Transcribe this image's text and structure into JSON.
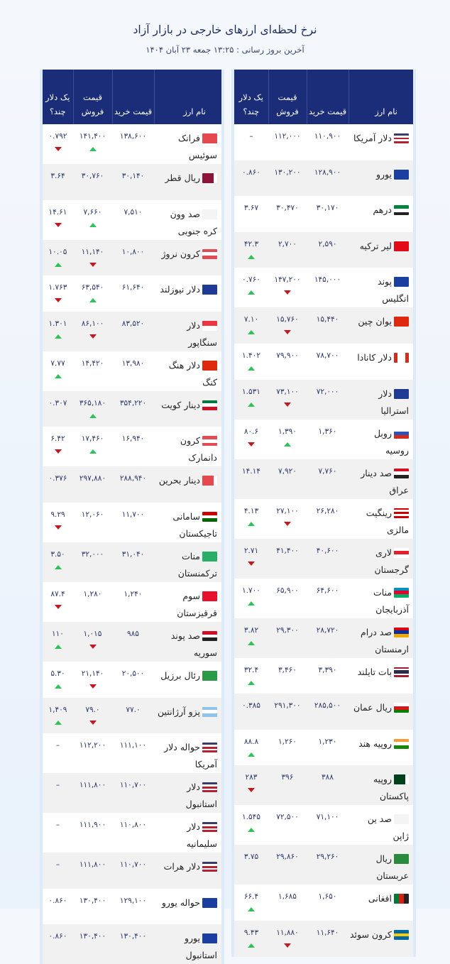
{
  "header": {
    "title": "نرخ لحظه‌ای ارزهای خارجی در بازار آزاد",
    "subtitle": "آخرین بروز رسانی : ۱۳:۲۵ جمعه ۲۳ آبان ۱۴۰۴"
  },
  "columns": {
    "name": "نام ارز",
    "buy": "قیمت خرید",
    "sell": "قیمت فروش",
    "per_usd": "یک دلار چند؟"
  },
  "colors": {
    "header_bg": "#1b2d78",
    "up": "#2fc25a",
    "down": "#c41820"
  },
  "right_table": [
    {
      "name": "دلار آمریکا",
      "flag": {
        "icon": "us-flag-icon",
        "dir": "h",
        "colors": [
          "#3c3b6e",
          "#fff",
          "#b22234",
          "#fff",
          "#b22234"
        ]
      },
      "buy": "۱۱۰,۹۰۰",
      "sell": "۱۱۲,۰۰۰",
      "per_usd": "–",
      "sell_trend": null,
      "per_usd_trend": null
    },
    {
      "name": "یورو",
      "flag": {
        "icon": "eu-flag-icon",
        "dir": "h",
        "colors": [
          "#1b3fa0"
        ]
      },
      "buy": "۱۲۸,۹۰۰",
      "sell": "۱۳۰,۲۰۰",
      "per_usd": "۰.۸۶۰",
      "sell_trend": null,
      "per_usd_trend": null
    },
    {
      "name": "درهم",
      "flag": {
        "icon": "uae-flag-icon",
        "dir": "h",
        "colors": [
          "#00843d",
          "#fff",
          "#222"
        ]
      },
      "buy": "۳۰,۱۷۰",
      "sell": "۳۰,۴۷۰",
      "per_usd": "۳.۶۷",
      "sell_trend": null,
      "per_usd_trend": null
    },
    {
      "name": "لیر ترکیه",
      "flag": {
        "icon": "turkey-flag-icon",
        "dir": "h",
        "colors": [
          "#e30a17"
        ]
      },
      "buy": "۲,۵۹۰",
      "sell": "۲,۷۰۰",
      "per_usd": "۴۲.۳",
      "sell_trend": null,
      "per_usd_trend": "up"
    },
    {
      "name": "پوند انگلیس",
      "flag": {
        "icon": "eu-flag-icon",
        "dir": "h",
        "colors": [
          "#1b3fa0"
        ]
      },
      "buy": "۱۴۵,۰۰۰",
      "sell": "۱۴۷,۲۰۰",
      "per_usd": "۰.۷۶۰",
      "sell_trend": "down",
      "per_usd_trend": "up"
    },
    {
      "name": "یوان چین",
      "flag": {
        "icon": "china-flag-icon",
        "dir": "h",
        "colors": [
          "#de2910"
        ]
      },
      "buy": "۱۵,۴۴۰",
      "sell": "۱۵,۷۶۰",
      "per_usd": "۷.۱۰",
      "sell_trend": "down",
      "per_usd_trend": "up"
    },
    {
      "name": "دلار کانادا",
      "flag": {
        "icon": "canada-flag-icon",
        "dir": "v",
        "colors": [
          "#d52b1e",
          "#fff",
          "#fff",
          "#d52b1e"
        ]
      },
      "buy": "۷۸,۷۰۰",
      "sell": "۷۹,۹۰۰",
      "per_usd": "۱.۴۰۲",
      "sell_trend": null,
      "per_usd_trend": "up"
    },
    {
      "name": "دلار استرالیا",
      "flag": {
        "icon": "australia-flag-icon",
        "dir": "h",
        "colors": [
          "#1f3a93"
        ]
      },
      "buy": "۷۲,۰۰۰",
      "sell": "۷۳,۱۰۰",
      "per_usd": "۱.۵۳۱",
      "sell_trend": "down",
      "per_usd_trend": "up"
    },
    {
      "name": "روبل روسیه",
      "flag": {
        "icon": "russia-flag-icon",
        "dir": "h",
        "colors": [
          "#fff",
          "#2c52b8",
          "#d52b1e"
        ]
      },
      "buy": "۱,۳۶۰",
      "sell": "۱,۳۹۰",
      "per_usd": "۸۰.۶",
      "sell_trend": "up",
      "per_usd_trend": "down"
    },
    {
      "name": "صد دینار عراق",
      "flag": {
        "icon": "iraq-flag-icon",
        "dir": "h",
        "colors": [
          "#ce1126",
          "#fff",
          "#222"
        ]
      },
      "buy": "۷,۷۶۰",
      "sell": "۷,۹۲۰",
      "per_usd": "۱۴.۱۴",
      "sell_trend": null,
      "per_usd_trend": null
    },
    {
      "name": "رینگیت مالزی",
      "flag": {
        "icon": "malaysia-flag-icon",
        "dir": "h",
        "colors": [
          "#cc0001",
          "#fff",
          "#cc0001",
          "#fff",
          "#cc0001"
        ]
      },
      "buy": "۲۶,۲۸۰",
      "sell": "۲۷,۱۰۰",
      "per_usd": "۴.۱۳",
      "sell_trend": "down",
      "per_usd_trend": "up"
    },
    {
      "name": "لاری گرجستان",
      "flag": {
        "icon": "georgia-flag-icon",
        "dir": "h",
        "colors": [
          "#fff",
          "#e41e2a",
          "#fff"
        ]
      },
      "buy": "۴۰,۶۰۰",
      "sell": "۴۱,۴۰۰",
      "per_usd": "۲.۷۱",
      "sell_trend": null,
      "per_usd_trend": "down"
    },
    {
      "name": "منات آذربایجان",
      "flag": {
        "icon": "azerbaijan-flag-icon",
        "dir": "h",
        "colors": [
          "#0092bc",
          "#e4002b",
          "#00af66"
        ]
      },
      "buy": "۶۴,۶۰۰",
      "sell": "۶۵,۹۰۰",
      "per_usd": "۱.۷۰۰",
      "sell_trend": null,
      "per_usd_trend": "up"
    },
    {
      "name": "صد درام ارمنستان",
      "flag": {
        "icon": "armenia-flag-icon",
        "dir": "h",
        "colors": [
          "#d90012",
          "#0033a0",
          "#f2a800"
        ]
      },
      "buy": "۲۸,۷۲۰",
      "sell": "۲۹,۳۰۰",
      "per_usd": "۳.۸۲",
      "sell_trend": null,
      "per_usd_trend": "up"
    },
    {
      "name": "بات تایلند",
      "flag": {
        "icon": "thailand-flag-icon",
        "dir": "h",
        "colors": [
          "#a51931",
          "#fff",
          "#2d2a4a",
          "#2d2a4a",
          "#fff",
          "#a51931"
        ]
      },
      "buy": "۳,۳۹۰",
      "sell": "۳,۴۶۰",
      "per_usd": "۳۲.۴",
      "sell_trend": null,
      "per_usd_trend": "up"
    },
    {
      "name": "ریال عمان",
      "flag": {
        "icon": "oman-flag-icon",
        "dir": "h",
        "colors": [
          "#fff",
          "#db161b",
          "#008000"
        ]
      },
      "buy": "۲۸۵,۵۰۰",
      "sell": "۲۹۱,۳۰۰",
      "per_usd": "۰.۳۸۵",
      "sell_trend": null,
      "per_usd_trend": null
    },
    {
      "name": "روپیه هند",
      "flag": {
        "icon": "india-flag-icon",
        "dir": "h",
        "colors": [
          "#ff9933",
          "#fff",
          "#138808"
        ]
      },
      "buy": "۱,۲۳۰",
      "sell": "۱,۲۶۰",
      "per_usd": "۸۸.۸",
      "sell_trend": null,
      "per_usd_trend": "up"
    },
    {
      "name": "روپیه پاکستان",
      "flag": {
        "icon": "pakistan-flag-icon",
        "dir": "v",
        "colors": [
          "#fff",
          "#01411c",
          "#01411c",
          "#01411c"
        ]
      },
      "buy": "۳۸۸",
      "sell": "۳۹۶",
      "per_usd": "۲۸۳",
      "sell_trend": null,
      "per_usd_trend": "down"
    },
    {
      "name": "صد ین ژاپن",
      "flag": {
        "icon": "japan-flag-icon",
        "dir": "h",
        "colors": [
          "#f4f4f4"
        ]
      },
      "buy": "۷۱,۱۰۰",
      "sell": "۷۲,۵۰۰",
      "per_usd": "۱.۵۴۵",
      "sell_trend": null,
      "per_usd_trend": "up"
    },
    {
      "name": "ریال عربستان",
      "flag": {
        "icon": "saudi-flag-icon",
        "dir": "h",
        "colors": [
          "#2a8a3e"
        ]
      },
      "buy": "۲۹,۲۶۰",
      "sell": "۲۹,۸۶۰",
      "per_usd": "۳.۷۵",
      "sell_trend": null,
      "per_usd_trend": null
    },
    {
      "name": "افغانی",
      "flag": {
        "icon": "afghanistan-flag-icon",
        "dir": "v",
        "colors": [
          "#222",
          "#d32011",
          "#007a36"
        ]
      },
      "buy": "۱,۶۵۰",
      "sell": "۱,۶۸۵",
      "per_usd": "۶۶.۴",
      "sell_trend": null,
      "per_usd_trend": "up"
    },
    {
      "name": "کرون سوئد",
      "flag": {
        "icon": "sweden-flag-icon",
        "dir": "h",
        "colors": [
          "#006aa7",
          "#fecc00",
          "#006aa7"
        ]
      },
      "buy": "۱۱,۶۴۰",
      "sell": "۱۱,۸۸۰",
      "per_usd": "۹.۴۳",
      "sell_trend": "down",
      "per_usd_trend": "up"
    }
  ],
  "left_table": [
    {
      "name": "فرانک سوئیس",
      "flag": {
        "icon": "swiss-flag-icon",
        "dir": "h",
        "colors": [
          "#e5484d"
        ]
      },
      "buy": "۱۳۸,۶۰۰",
      "sell": "۱۴۱,۴۰۰",
      "per_usd": "۰.۷۹۲",
      "sell_trend": "up",
      "per_usd_trend": "down"
    },
    {
      "name": "ریال قطر",
      "flag": {
        "icon": "qatar-flag-icon",
        "dir": "v",
        "colors": [
          "#fff",
          "#8a1538",
          "#8a1538",
          "#8a1538"
        ]
      },
      "buy": "۳۰,۱۴۰",
      "sell": "۳۰,۷۶۰",
      "per_usd": "۳.۶۴",
      "sell_trend": null,
      "per_usd_trend": null
    },
    {
      "name": "صد وون کره جنوبی",
      "flag": {
        "icon": "south-korea-flag-icon",
        "dir": "h",
        "colors": [
          "#f4f4f4"
        ]
      },
      "buy": "۷,۵۱۰",
      "sell": "۷,۶۶۰",
      "per_usd": "۱۴.۶۱",
      "sell_trend": "up",
      "per_usd_trend": "down"
    },
    {
      "name": "کرون نروژ",
      "flag": {
        "icon": "norway-flag-icon",
        "dir": "h",
        "colors": [
          "#e04b55",
          "#fff",
          "#e04b55"
        ]
      },
      "buy": "۱۰,۸۰۰",
      "sell": "۱۱,۱۴۰",
      "per_usd": "۱۰.۰۵",
      "sell_trend": "down",
      "per_usd_trend": "up"
    },
    {
      "name": "دلار نیوزلند",
      "flag": {
        "icon": "new-zealand-flag-icon",
        "dir": "h",
        "colors": [
          "#1f3a93"
        ]
      },
      "buy": "۶۱,۶۴۰",
      "sell": "۶۳,۵۴۰",
      "per_usd": "۱.۷۶۳",
      "sell_trend": "up",
      "per_usd_trend": "down"
    },
    {
      "name": "دلار سنگاپور",
      "flag": {
        "icon": "singapore-flag-icon",
        "dir": "h",
        "colors": [
          "#ef3340",
          "#fff"
        ]
      },
      "buy": "۸۳,۵۲۰",
      "sell": "۸۶,۱۰۰",
      "per_usd": "۱.۳۰۱",
      "sell_trend": "down",
      "per_usd_trend": "up"
    },
    {
      "name": "دلار هنگ کنگ",
      "flag": {
        "icon": "hong-kong-flag-icon",
        "dir": "h",
        "colors": [
          "#de2910"
        ]
      },
      "buy": "۱۳,۹۸۰",
      "sell": "۱۴,۴۲۰",
      "per_usd": "۷.۷۷",
      "sell_trend": null,
      "per_usd_trend": "up"
    },
    {
      "name": "دینار کویت",
      "flag": {
        "icon": "kuwait-flag-icon",
        "dir": "h",
        "colors": [
          "#007a3d",
          "#fff",
          "#ce1126"
        ]
      },
      "buy": "۳۵۴,۲۲۰",
      "sell": "۳۶۵,۱۸۰",
      "per_usd": "۰.۳۰۷",
      "sell_trend": "up",
      "per_usd_trend": null
    },
    {
      "name": "کرون دانمارک",
      "flag": {
        "icon": "denmark-flag-icon",
        "dir": "h",
        "colors": [
          "#e04b55",
          "#fff",
          "#e04b55"
        ]
      },
      "buy": "۱۶,۹۴۰",
      "sell": "۱۷,۴۶۰",
      "per_usd": "۶.۴۲",
      "sell_trend": "up",
      "per_usd_trend": "down"
    },
    {
      "name": "دینار بحرین",
      "flag": {
        "icon": "bahrain-flag-icon",
        "dir": "v",
        "colors": [
          "#fff",
          "#e5484d",
          "#e5484d",
          "#e5484d"
        ]
      },
      "buy": "۲۸۸,۹۴۰",
      "sell": "۲۹۷,۸۸۰",
      "per_usd": "۰.۳۷۶",
      "sell_trend": null,
      "per_usd_trend": null
    },
    {
      "name": "سامانی تاجیکستان",
      "flag": {
        "icon": "tajikistan-flag-icon",
        "dir": "h",
        "colors": [
          "#cc0000",
          "#fff",
          "#006600"
        ]
      },
      "buy": "۱۱,۷۰۰",
      "sell": "۱۲,۰۶۰",
      "per_usd": "۹.۲۹",
      "sell_trend": null,
      "per_usd_trend": "down"
    },
    {
      "name": "منات ترکمنستان",
      "flag": {
        "icon": "turkmenistan-flag-icon",
        "dir": "h",
        "colors": [
          "#28ae66"
        ]
      },
      "buy": "۳۱,۰۴۰",
      "sell": "۳۲,۰۰۰",
      "per_usd": "۳.۵۰",
      "sell_trend": null,
      "per_usd_trend": "up"
    },
    {
      "name": "سوم قرقیزستان",
      "flag": {
        "icon": "kyrgyzstan-flag-icon",
        "dir": "h",
        "colors": [
          "#e8112d"
        ]
      },
      "buy": "۱,۲۴۰",
      "sell": "۱,۲۸۰",
      "per_usd": "۸۷.۴",
      "sell_trend": null,
      "per_usd_trend": "down"
    },
    {
      "name": "صد پوند سوریه",
      "flag": {
        "icon": "syria-flag-icon",
        "dir": "h",
        "colors": [
          "#ce1126",
          "#fff",
          "#222"
        ]
      },
      "buy": "۹۸۵",
      "sell": "۱,۰۱۵",
      "per_usd": "۱۱۰",
      "sell_trend": "down",
      "per_usd_trend": "up"
    },
    {
      "name": "رئال برزیل",
      "flag": {
        "icon": "brazil-flag-icon",
        "dir": "h",
        "colors": [
          "#2a9a48"
        ]
      },
      "buy": "۲۰,۵۰۰",
      "sell": "۲۱,۱۴۰",
      "per_usd": "۵.۳۰",
      "sell_trend": "down",
      "per_usd_trend": "up"
    },
    {
      "name": "پزو آرژانتین",
      "flag": {
        "icon": "argentina-flag-icon",
        "dir": "h",
        "colors": [
          "#8fc3ea",
          "#fff",
          "#8fc3ea"
        ]
      },
      "buy": "۷۷.۰",
      "sell": "۷۹.۰",
      "per_usd": "۱,۴۰۹",
      "sell_trend": "down",
      "per_usd_trend": "up"
    },
    {
      "name": "حواله دلار آمریکا",
      "flag": {
        "icon": "us-flag-icon",
        "dir": "h",
        "colors": [
          "#3c3b6e",
          "#fff",
          "#b22234",
          "#fff",
          "#b22234"
        ]
      },
      "buy": "۱۱۱,۱۰۰",
      "sell": "۱۱۲,۲۰۰",
      "per_usd": "–",
      "sell_trend": null,
      "per_usd_trend": null
    },
    {
      "name": "دلار استانبول",
      "flag": {
        "icon": "us-flag-icon",
        "dir": "h",
        "colors": [
          "#3c3b6e",
          "#fff",
          "#b22234",
          "#fff",
          "#b22234"
        ]
      },
      "buy": "۱۱۰,۷۰۰",
      "sell": "۱۱۱,۸۰۰",
      "per_usd": "–",
      "sell_trend": null,
      "per_usd_trend": null
    },
    {
      "name": "دلار سلیمانیه",
      "flag": {
        "icon": "us-flag-icon",
        "dir": "h",
        "colors": [
          "#3c3b6e",
          "#fff",
          "#b22234",
          "#fff",
          "#b22234"
        ]
      },
      "buy": "۱۱۰,۸۰۰",
      "sell": "۱۱۱,۹۰۰",
      "per_usd": "–",
      "sell_trend": null,
      "per_usd_trend": null
    },
    {
      "name": "دلار هرات",
      "flag": {
        "icon": "us-flag-icon",
        "dir": "h",
        "colors": [
          "#3c3b6e",
          "#fff",
          "#b22234",
          "#fff",
          "#b22234"
        ]
      },
      "buy": "۱۱۰,۷۰۰",
      "sell": "۱۱۱,۸۰۰",
      "per_usd": "–",
      "sell_trend": null,
      "per_usd_trend": null
    },
    {
      "name": "حواله یورو",
      "flag": {
        "icon": "eu-flag-icon",
        "dir": "h",
        "colors": [
          "#1b3fa0"
        ]
      },
      "buy": "۱۲۹,۱۰۰",
      "sell": "۱۳۰,۴۰۰",
      "per_usd": "۰.۸۶۰",
      "sell_trend": null,
      "per_usd_trend": null
    },
    {
      "name": "یورو استانبول",
      "flag": {
        "icon": "eu-flag-icon",
        "dir": "h",
        "colors": [
          "#1b3fa0"
        ]
      },
      "buy": "۱۳۰,۴۰۰",
      "sell": "۱۳۰,۴۰۰",
      "per_usd": "۰.۸۶۰",
      "sell_trend": null,
      "per_usd_trend": null
    }
  ]
}
